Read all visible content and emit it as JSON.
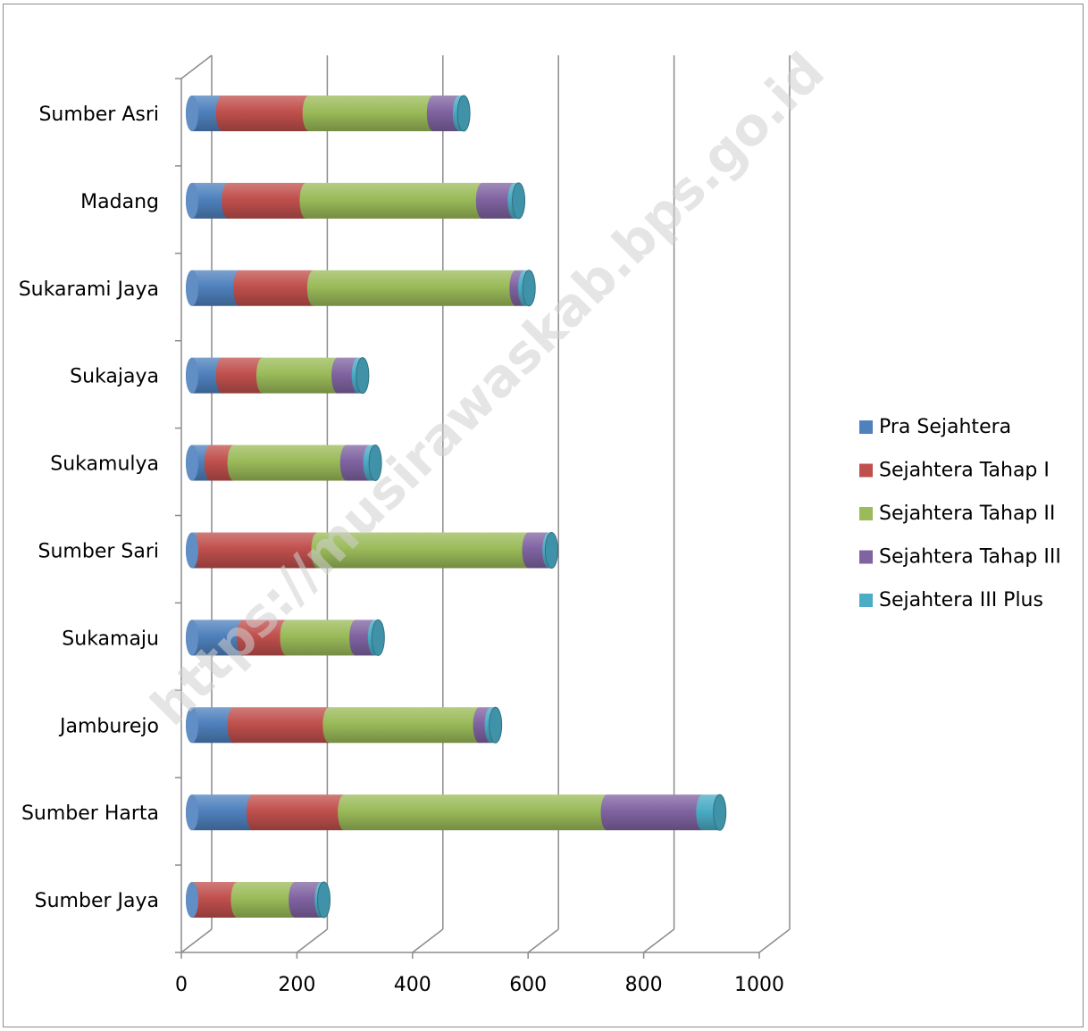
{
  "chart_data": {
    "type": "bar",
    "orientation": "horizontal",
    "stacked": true,
    "style": "3d-cylinder",
    "categories": [
      "Sumber Asri",
      "Madang",
      "Sukarami Jaya",
      "Sukajaya",
      "Sukamulya",
      "Sumber Sari",
      "Sukamaju",
      "Jamburejo",
      "Sumber Harta",
      "Sumber Jaya"
    ],
    "series": [
      {
        "name": "Pra Sejahtera",
        "color": "#4f81bd",
        "values": [
          52,
          62,
          82,
          52,
          32,
          12,
          88,
          72,
          105,
          5
        ]
      },
      {
        "name": "Sejahtera Tahap I",
        "color": "#c0504d",
        "values": [
          150,
          135,
          128,
          70,
          40,
          205,
          75,
          165,
          158,
          73
        ]
      },
      {
        "name": "Sejahtera Tahap II",
        "color": "#9bbb59",
        "values": [
          215,
          305,
          350,
          130,
          195,
          365,
          120,
          260,
          455,
          100
        ]
      },
      {
        "name": "Sejahtera Tahap III",
        "color": "#8064a2",
        "values": [
          45,
          55,
          15,
          35,
          40,
          35,
          32,
          20,
          165,
          45
        ]
      },
      {
        "name": "Sejahtera III Plus",
        "color": "#4bacc6",
        "values": [
          8,
          8,
          8,
          8,
          10,
          5,
          7,
          8,
          30,
          5
        ]
      }
    ],
    "xaxis": {
      "ticks": [
        "0",
        "200",
        "400",
        "600",
        "800",
        "1000"
      ],
      "range": [
        0,
        1000
      ]
    },
    "grid": true,
    "legend": "right",
    "watermark": "https://musirawaskab.bps.go.id"
  }
}
